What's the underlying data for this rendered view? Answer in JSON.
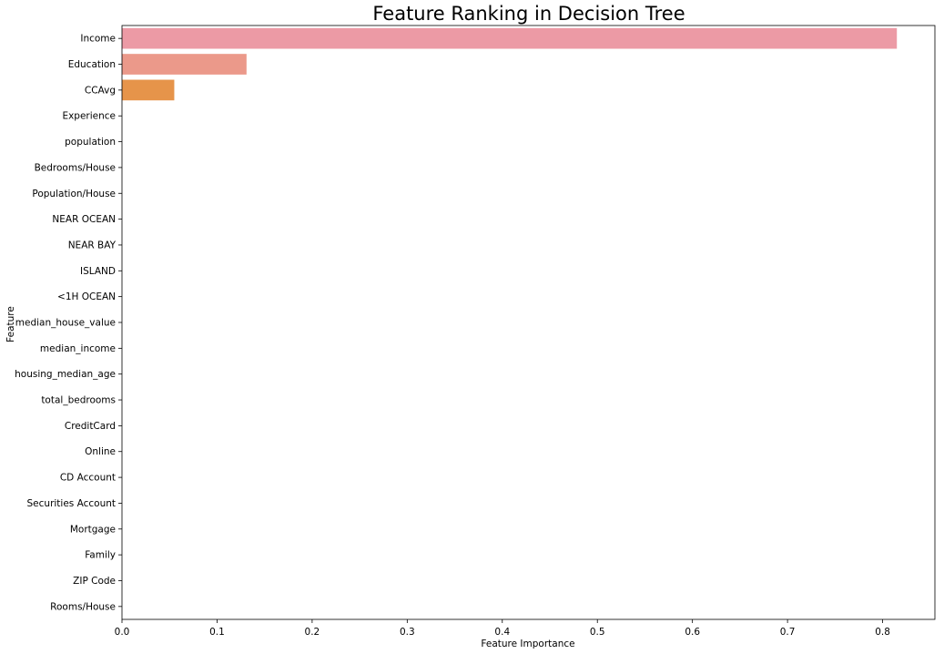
{
  "chart_data": {
    "type": "bar",
    "orientation": "horizontal",
    "title": "Feature Ranking in Decision Tree",
    "xlabel": "Feature Importance",
    "ylabel": "Feature",
    "xlim": [
      0,
      0.855
    ],
    "xticks": [
      0.0,
      0.1,
      0.2,
      0.3,
      0.4,
      0.5,
      0.6,
      0.7,
      0.8
    ],
    "xtick_labels": [
      "0.0",
      "0.1",
      "0.2",
      "0.3",
      "0.4",
      "0.5",
      "0.6",
      "0.7",
      "0.8"
    ],
    "grid": false,
    "categories": [
      "Income",
      "Education",
      "CCAvg",
      "Experience",
      "population",
      "Bedrooms/House",
      "Population/House",
      "NEAR OCEAN",
      "NEAR BAY",
      "ISLAND",
      "<1H OCEAN",
      "median_house_value",
      "median_income",
      "housing_median_age",
      "total_bedrooms",
      "CreditCard",
      "Online",
      "CD Account",
      "Securities Account",
      "Mortgage",
      "Family",
      "ZIP Code",
      "Rooms/House"
    ],
    "values": [
      0.815,
      0.131,
      0.055,
      0,
      0,
      0,
      0,
      0,
      0,
      0,
      0,
      0,
      0,
      0,
      0,
      0,
      0,
      0,
      0,
      0,
      0,
      0,
      0
    ],
    "colors": [
      "#ec9aa5",
      "#eb998a",
      "#e6944a"
    ]
  }
}
